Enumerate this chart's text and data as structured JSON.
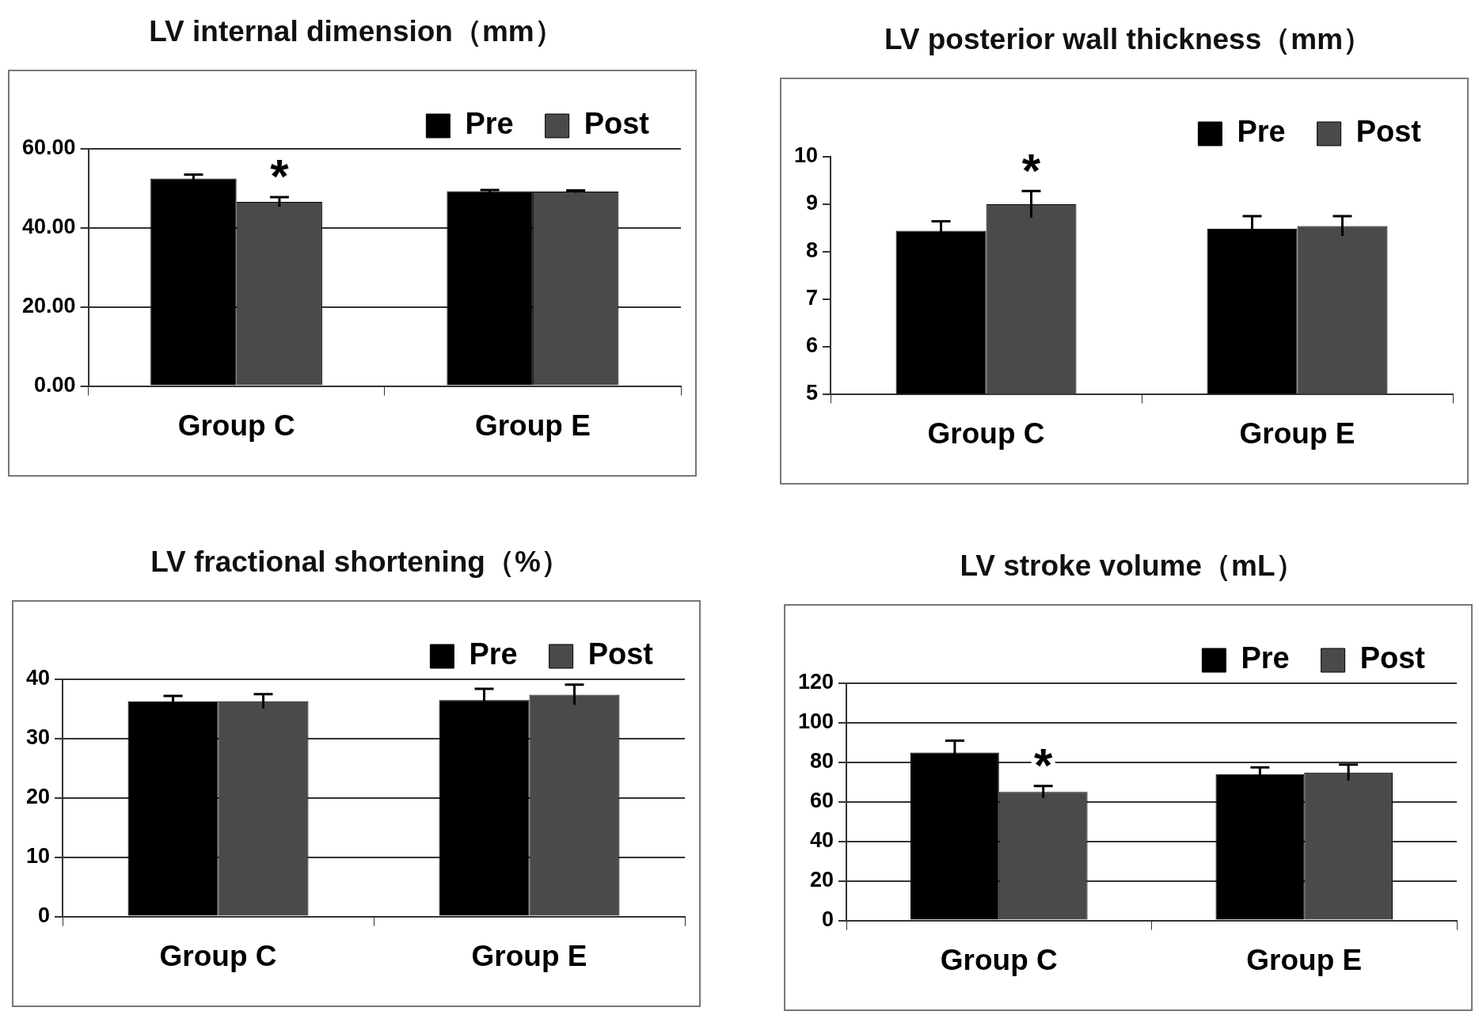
{
  "chart_data": [
    {
      "type": "bar",
      "title": "LV internal dimension（mm）",
      "categories": [
        "Group C",
        "Group E"
      ],
      "series": [
        {
          "name": "Pre",
          "color": "#000000",
          "values": [
            52.5,
            49.3
          ],
          "errors": [
            1.0,
            0.3
          ]
        },
        {
          "name": "Post",
          "color": "#4a4a4a",
          "values": [
            46.6,
            49.2
          ],
          "errors": [
            1.2,
            0.3
          ]
        }
      ],
      "ylim": [
        0,
        60
      ],
      "yticks": [
        {
          "value": 0,
          "label": "0.00"
        },
        {
          "value": 20,
          "label": "20.00"
        },
        {
          "value": 40,
          "label": "40.00"
        },
        {
          "value": 60,
          "label": "60.00"
        }
      ],
      "grid": "y",
      "legend": "top right",
      "annotations": [
        "*"
      ]
    },
    {
      "type": "bar",
      "title": "LV posterior wall thickness（mm）",
      "categories": [
        "Group C",
        "Group E"
      ],
      "series": [
        {
          "name": "Pre",
          "color": "#000000",
          "values": [
            8.44,
            8.48
          ],
          "errors": [
            0.2,
            0.27
          ]
        },
        {
          "name": "Post",
          "color": "#4a4a4a",
          "values": [
            9.0,
            8.54
          ],
          "errors": [
            0.28,
            0.21
          ]
        }
      ],
      "ylim": [
        5,
        10
      ],
      "yticks": [
        5,
        6,
        7,
        8,
        9,
        10
      ],
      "legend": "top right",
      "annotations": [
        "*"
      ]
    },
    {
      "type": "bar",
      "title": "LV fractional shortening（%）",
      "categories": [
        "Group C",
        "Group E"
      ],
      "series": [
        {
          "name": "Pre",
          "color": "#000000",
          "values": [
            36.3,
            36.5
          ],
          "errors": [
            0.9,
            1.9
          ]
        },
        {
          "name": "Post",
          "color": "#4a4a4a",
          "values": [
            36.3,
            37.4
          ],
          "errors": [
            1.2,
            1.7
          ]
        }
      ],
      "ylim": [
        0,
        40
      ],
      "yticks": [
        0,
        10,
        20,
        30,
        40
      ],
      "grid": "y",
      "legend": "top right"
    },
    {
      "type": "bar",
      "title": "LV stroke volume（mL）",
      "categories": [
        "Group C",
        "Group E"
      ],
      "series": [
        {
          "name": "Pre",
          "color": "#000000",
          "values": [
            85.0,
            74.0
          ],
          "errors": [
            6,
            3.4
          ]
        },
        {
          "name": "Post",
          "color": "#4a4a4a",
          "values": [
            65.0,
            74.8
          ],
          "errors": [
            3,
            4
          ]
        }
      ],
      "ylim": [
        0,
        120
      ],
      "yticks": [
        0,
        20,
        40,
        60,
        80,
        100,
        120
      ],
      "grid": "y",
      "legend": "top right",
      "annotations": [
        "*"
      ]
    }
  ]
}
